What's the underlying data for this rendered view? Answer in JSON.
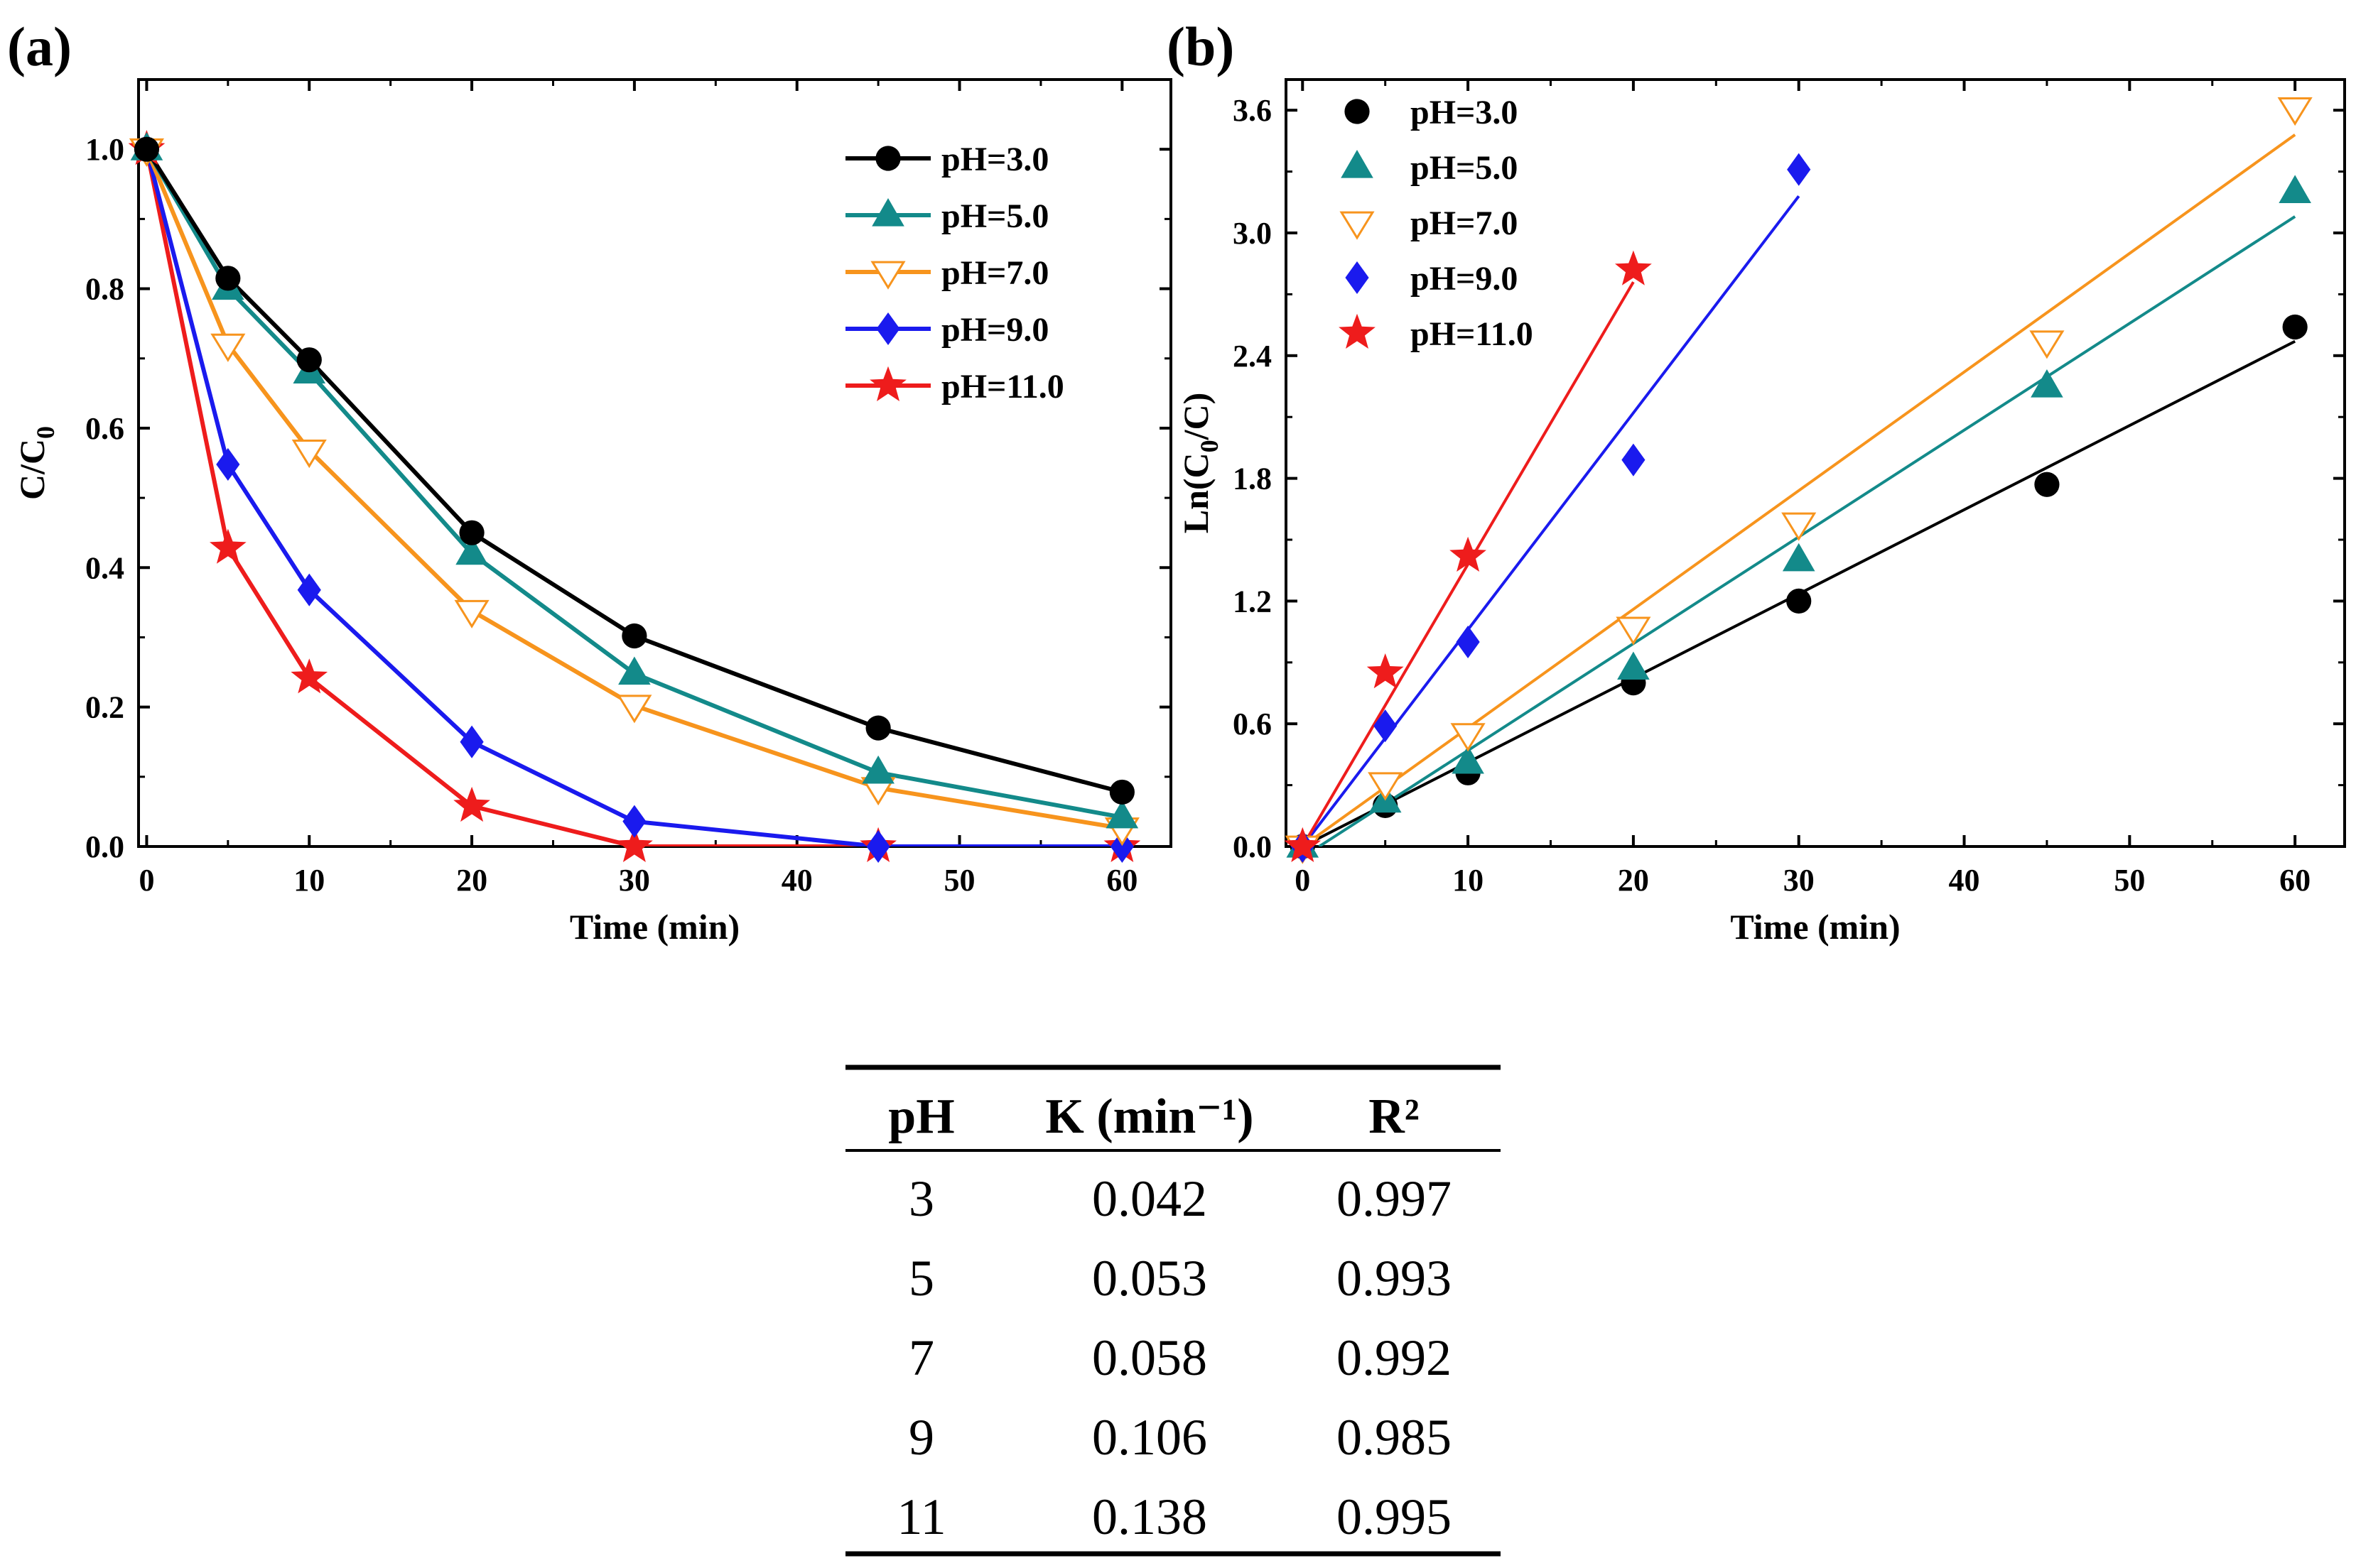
{
  "chart_data": [
    {
      "panel_label": "(a)",
      "type": "line",
      "xlabel": "Time (min)",
      "ylabel_main": "C/C",
      "ylabel_sub": "0",
      "xlim": [
        -0.5,
        63
      ],
      "ylim": [
        0,
        1.1
      ],
      "xticks": [
        "0",
        "10",
        "20",
        "30",
        "40",
        "50",
        "60"
      ],
      "yticks": [
        "0.0",
        "0.2",
        "0.4",
        "0.6",
        "0.8",
        "1.0"
      ],
      "x": [
        0,
        5,
        10,
        20,
        30,
        45,
        60
      ],
      "legend_position": "top-right",
      "series": [
        {
          "name": "pH=3.0",
          "color": "#000000",
          "marker": "circle",
          "values": [
            1.0,
            0.815,
            0.698,
            0.45,
            0.302,
            0.17,
            0.078
          ]
        },
        {
          "name": "pH=5.0",
          "color": "#138a8a",
          "marker": "triangle",
          "values": [
            1.0,
            0.8,
            0.68,
            0.42,
            0.248,
            0.106,
            0.042
          ]
        },
        {
          "name": "pH=7.0",
          "color": "#f7941d",
          "marker": "triangle-down-open",
          "values": [
            1.0,
            0.72,
            0.568,
            0.338,
            0.202,
            0.084,
            0.026
          ]
        },
        {
          "name": "pH=9.0",
          "color": "#1a1aee",
          "marker": "diamond",
          "values": [
            1.0,
            0.548,
            0.368,
            0.15,
            0.036,
            0.0,
            0.0
          ]
        },
        {
          "name": "pH=11.0",
          "color": "#ee1c1c",
          "marker": "star",
          "values": [
            1.0,
            0.428,
            0.242,
            0.058,
            0.0,
            0.0,
            0.0
          ]
        }
      ]
    },
    {
      "panel_label": "(b)",
      "type": "scatter",
      "xlabel": "Time (min)",
      "ylabel_main": "Ln(C",
      "ylabel_sub": "0",
      "ylabel_tail": "/C)",
      "xlim": [
        -1,
        63
      ],
      "ylim": [
        0,
        3.75
      ],
      "xticks": [
        "0",
        "10",
        "20",
        "30",
        "40",
        "50",
        "60"
      ],
      "yticks": [
        "0.0",
        "0.6",
        "1.2",
        "1.8",
        "2.4",
        "3.0",
        "3.6"
      ],
      "legend_position": "top-left",
      "series": [
        {
          "name": "pH=3.0",
          "color": "#000000",
          "marker": "circle",
          "x": [
            0,
            5,
            10,
            20,
            30,
            45,
            60
          ],
          "values": [
            0.0,
            0.2,
            0.36,
            0.8,
            1.2,
            1.77,
            2.54
          ],
          "fit_line": {
            "x": [
              0,
              60
            ],
            "values": [
              0.0,
              2.47
            ]
          }
        },
        {
          "name": "pH=5.0",
          "color": "#138a8a",
          "marker": "triangle",
          "x": [
            0,
            5,
            10,
            20,
            30,
            45,
            60
          ],
          "values": [
            0.0,
            0.22,
            0.41,
            0.87,
            1.4,
            2.25,
            3.2
          ],
          "fit_line": {
            "x": [
              1,
              60
            ],
            "values": [
              0.0,
              3.08
            ]
          }
        },
        {
          "name": "pH=7.0",
          "color": "#f7941d",
          "marker": "triangle-down-open",
          "x": [
            0,
            5,
            10,
            20,
            30,
            45,
            60
          ],
          "values": [
            0.0,
            0.31,
            0.55,
            1.07,
            1.58,
            2.47,
            3.61
          ],
          "fit_line": {
            "x": [
              0,
              60
            ],
            "values": [
              0.0,
              3.48
            ]
          }
        },
        {
          "name": "pH=9.0",
          "color": "#1a1aee",
          "marker": "diamond",
          "x": [
            0,
            5,
            10,
            20,
            30
          ],
          "values": [
            0.0,
            0.59,
            1.0,
            1.89,
            3.31
          ],
          "fit_line": {
            "x": [
              0,
              30
            ],
            "values": [
              0.0,
              3.18
            ]
          }
        },
        {
          "name": "pH=11.0",
          "color": "#ee1c1c",
          "marker": "star",
          "x": [
            0,
            5,
            10,
            20
          ],
          "values": [
            0.0,
            0.85,
            1.42,
            2.82
          ],
          "fit_line": {
            "x": [
              0,
              20
            ],
            "values": [
              0.0,
              2.76
            ]
          }
        }
      ]
    }
  ],
  "table": {
    "headers": [
      "pH",
      "K (min⁻¹)",
      "R²"
    ],
    "rows": [
      [
        "3",
        "0.042",
        "0.997"
      ],
      [
        "5",
        "0.053",
        "0.993"
      ],
      [
        "7",
        "0.058",
        "0.992"
      ],
      [
        "9",
        "0.106",
        "0.985"
      ],
      [
        "11",
        "0.138",
        "0.995"
      ]
    ]
  }
}
